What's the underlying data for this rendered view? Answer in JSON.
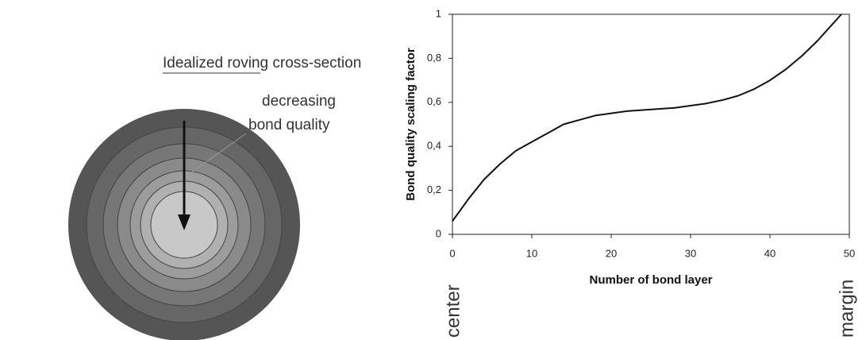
{
  "diagram": {
    "title": "Idealized roving cross-section",
    "label_lines": [
      "decreasing",
      "bond quality"
    ]
  },
  "chart_data": {
    "type": "line",
    "x_label": "Number of bond layer",
    "y_label": "Bond quality scaling factor",
    "annotations": [
      "center",
      "margin"
    ],
    "x": [
      0,
      2,
      4,
      6,
      8,
      10,
      12,
      14,
      16,
      18,
      20,
      22,
      24,
      26,
      28,
      30,
      32,
      34,
      36,
      38,
      40,
      42,
      44,
      46,
      48,
      49
    ],
    "values": [
      0.06,
      0.16,
      0.25,
      0.32,
      0.38,
      0.42,
      0.46,
      0.5,
      0.52,
      0.54,
      0.55,
      0.56,
      0.565,
      0.57,
      0.575,
      0.585,
      0.595,
      0.61,
      0.63,
      0.66,
      0.7,
      0.75,
      0.81,
      0.88,
      0.96,
      1.0
    ],
    "color": "#111111",
    "xlim": [
      0,
      50
    ],
    "xticks": [
      0,
      10,
      20,
      30,
      40,
      50
    ],
    "ylim": [
      0,
      1
    ],
    "yticks": [
      0,
      {
        "value": 0.2,
        "label": "0,2"
      },
      {
        "value": 0.4,
        "label": "0,4"
      },
      {
        "value": 0.6,
        "label": "0,6"
      },
      {
        "value": 0.8,
        "label": "0,8"
      },
      1
    ],
    "grid": false
  }
}
